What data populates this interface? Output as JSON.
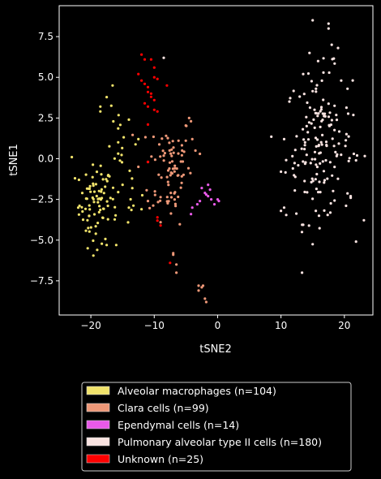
{
  "chart_data": {
    "type": "scatter",
    "xlabel": "tSNE2",
    "ylabel": "tSNE1",
    "xlim": [
      -25,
      24.5
    ],
    "ylim": [
      -9.6,
      9.4
    ],
    "xticks": [
      -20,
      -10,
      0,
      10,
      20
    ],
    "yticks": [
      -7.5,
      -5.0,
      -2.5,
      0.0,
      2.5,
      5.0,
      7.5
    ],
    "xtick_labels": [
      "−20",
      "−10",
      "0",
      "10",
      "20"
    ],
    "ytick_labels": [
      "−7.5",
      "−5.0",
      "−2.5",
      "0.0",
      "2.5",
      "5.0",
      "7.5"
    ],
    "grid": false,
    "legend_position": "below",
    "series": [
      {
        "name": "Alveolar macrophages (n=104)",
        "color": "#f1e36b",
        "clusters": [
          {
            "cx": -19.2,
            "cy": -2.8,
            "sx": 1.3,
            "sy": 1.2,
            "n": 70
          },
          {
            "cx": -15.5,
            "cy": -1.0,
            "sx": 1.7,
            "sy": 2.2,
            "n": 34
          }
        ],
        "x": [
          -23.0,
          -22.5,
          -22.0,
          -18.5,
          -18.5,
          -14.0,
          -12.5,
          -17.5,
          -16.0,
          -20.5,
          -19.0,
          -12.0,
          -14.0,
          -15.0
        ],
        "y": [
          0.1,
          -1.2,
          -3.0,
          3.2,
          2.9,
          2.4,
          1.2,
          -5.3,
          -5.3,
          -5.5,
          -5.6,
          -3.1,
          -3.0,
          -1.6
        ]
      },
      {
        "name": "Clara cells (n=99)",
        "color": "#ee9878",
        "clusters": [
          {
            "cx": -7.5,
            "cy": -0.5,
            "sx": 1.7,
            "sy": 1.7,
            "n": 80
          }
        ],
        "x": [
          -4.5,
          -4.2,
          -4.0,
          -3.5,
          -2.8,
          -12.5,
          -11.0,
          -11.0,
          -7.0,
          -7.0,
          -9.0,
          -6.5,
          -6.5,
          -3.0,
          -3.0,
          -2.3,
          -2.0,
          -1.8,
          -2.5
        ],
        "y": [
          2.5,
          2.3,
          1.2,
          0.5,
          0.3,
          -0.5,
          -0.2,
          -2.6,
          -5.8,
          -5.9,
          -3.9,
          -6.5,
          -7.0,
          -7.8,
          -8.1,
          -7.8,
          -8.6,
          -8.8,
          -7.9
        ]
      },
      {
        "name": "Ependymal cells (n=14)",
        "color": "#e95ae9",
        "x": [
          -2.5,
          -2.0,
          -1.8,
          -1.5,
          -1.2,
          -2.8,
          -3.2,
          -1.5,
          -1.0,
          -0.5,
          0.0,
          0.2,
          -4.0,
          -4.2
        ],
        "y": [
          -1.8,
          -2.1,
          -2.2,
          -1.6,
          -1.9,
          -2.6,
          -2.8,
          -2.3,
          -2.5,
          -2.8,
          -2.5,
          -2.6,
          -3.0,
          -3.4
        ]
      },
      {
        "name": "Pulmonary alveolar type II cells (n=180)",
        "color": "#f9e3e1",
        "clusters": [
          {
            "cx": 16.0,
            "cy": 0.8,
            "sx": 2.6,
            "sy": 2.3,
            "n": 160
          }
        ],
        "x": [
          15.0,
          17.5,
          17.5,
          21.5,
          22.0,
          10.0,
          10.5,
          15.5,
          16.0,
          -8.5,
          19.5,
          19.0,
          10.5,
          10.0,
          14.5,
          18.0,
          21.0,
          21.0,
          13.5,
          20.5
        ],
        "y": [
          8.5,
          8.3,
          8.0,
          0.3,
          0.2,
          -3.2,
          -3.0,
          -3.2,
          -3.5,
          6.2,
          4.8,
          6.8,
          1.2,
          -0.8,
          6.5,
          7.0,
          -2.3,
          -2.4,
          5.2,
          4.3
        ]
      },
      {
        "name": "Unknown (n=25)",
        "color": "#ff0000",
        "x": [
          -12.0,
          -11.5,
          -10.5,
          -10.0,
          -10.0,
          -9.5,
          -12.5,
          -12.0,
          -11.5,
          -11.0,
          -11.0,
          -10.5,
          -10.5,
          -10.0,
          -11.5,
          -11.0,
          -10.0,
          -9.5,
          -11.0,
          -8.0,
          -11.0,
          -9.5,
          -9.0,
          -7.5,
          -9.5
        ],
        "y": [
          6.4,
          6.1,
          6.1,
          5.6,
          5.0,
          4.9,
          5.2,
          4.8,
          4.6,
          4.4,
          4.1,
          4.0,
          3.8,
          3.6,
          3.4,
          3.2,
          3.0,
          2.9,
          2.1,
          4.5,
          -0.2,
          -3.8,
          -4.1,
          -6.4,
          -3.6
        ]
      }
    ]
  }
}
